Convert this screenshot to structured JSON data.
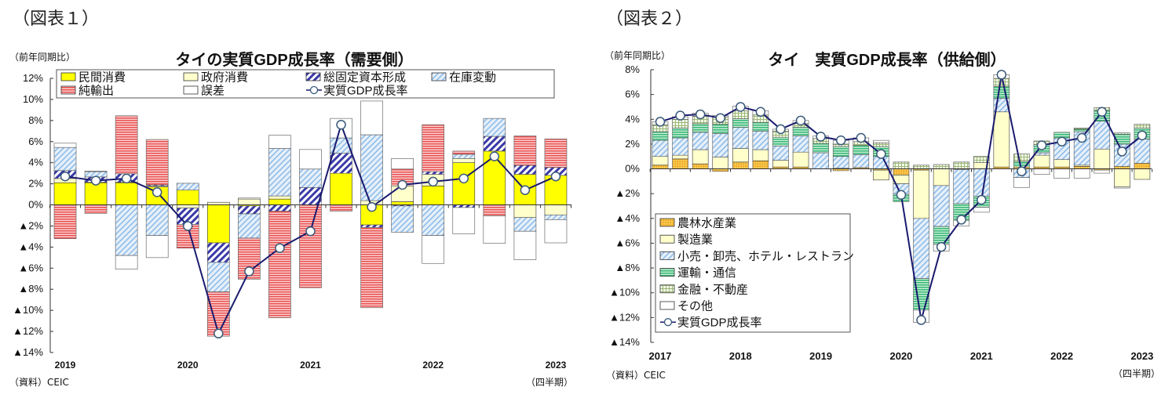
{
  "figure1": {
    "label": "（図表１）",
    "unit_note": "（前年同期比）",
    "source": "（資料）CEIC",
    "period_note": "（四半期）"
  },
  "figure2": {
    "label": "（図表２）",
    "unit_note": "（前年同期比）",
    "source": "（資料）CEIC",
    "period_note": "（四半期）"
  },
  "chart_data": [
    {
      "type": "bar",
      "stacked": true,
      "title": "タイの実質GDP成長率（需要側）",
      "ylim": [
        -14,
        12
      ],
      "ytick_labels": [
        "12%",
        "10%",
        "8%",
        "6%",
        "4%",
        "2%",
        "0%",
        "▲2%",
        "▲4%",
        "▲6%",
        "▲8%",
        "▲10%",
        "▲12%",
        "▲14%"
      ],
      "yticks": [
        12,
        10,
        8,
        6,
        4,
        2,
        0,
        -2,
        -4,
        -6,
        -8,
        -10,
        -12,
        -14
      ],
      "categories": [
        "2019Q1",
        "2019Q2",
        "2019Q3",
        "2019Q4",
        "2020Q1",
        "2020Q2",
        "2020Q3",
        "2020Q4",
        "2021Q1",
        "2021Q2",
        "2021Q3",
        "2021Q4",
        "2022Q1",
        "2022Q2",
        "2022Q3",
        "2022Q4",
        "2023Q1"
      ],
      "xtick_labels": [
        {
          "index": 0,
          "label": "2019"
        },
        {
          "index": 4,
          "label": "2020"
        },
        {
          "index": 8,
          "label": "2021"
        },
        {
          "index": 12,
          "label": "2022"
        },
        {
          "index": 16,
          "label": "2023"
        }
      ],
      "legend_position": "top",
      "series": [
        {
          "name": "民間消費",
          "color": "#ffff00",
          "pattern": "solid",
          "values": [
            2.1,
            2.1,
            2.1,
            1.7,
            1.4,
            -3.6,
            -0.1,
            0.55,
            0,
            3.0,
            -1.9,
            0.3,
            1.8,
            4.0,
            5.1,
            2.9,
            2.8
          ]
        },
        {
          "name": "政府消費",
          "color": "#ffffcc",
          "pattern": "solid",
          "values": [
            0.4,
            0.05,
            0.05,
            0.1,
            -0.3,
            0.25,
            0.55,
            0.3,
            0,
            0,
            0.4,
            1.5,
            1.1,
            0.4,
            0,
            -1.2,
            -0.95
          ]
        },
        {
          "name": "総固定資本形成",
          "color": "#3a3aa8",
          "pattern": "diag-bold",
          "values": [
            0.75,
            0.5,
            0.8,
            0.1,
            -1.55,
            -1.85,
            -0.75,
            -0.6,
            1.65,
            1.9,
            -0.25,
            -0.1,
            0.25,
            -0.25,
            1.4,
            0.85,
            0.75
          ]
        },
        {
          "name": "在庫変動",
          "color": "#8fbce8",
          "pattern": "diag-light",
          "values": [
            2.2,
            0.5,
            -4.8,
            -2.9,
            0.65,
            -2.8,
            -2.3,
            4.5,
            1.75,
            1.45,
            6.25,
            -2.5,
            -2.9,
            0.4,
            1.7,
            -1.3,
            -0.45
          ]
        },
        {
          "name": "純輸出",
          "color": "#e85050",
          "pattern": "hlines",
          "values": [
            -3.2,
            -0.8,
            5.5,
            4.3,
            -2.25,
            -4.2,
            -3.9,
            -10.1,
            -7.85,
            -0.6,
            -7.6,
            1.6,
            4.45,
            0.3,
            -1.05,
            2.8,
            2.7
          ]
        },
        {
          "name": "誤差",
          "color": "#ffffff",
          "pattern": "solid",
          "values": [
            0.4,
            0.05,
            -1.3,
            -2.1,
            0,
            0,
            0.1,
            1.25,
            1.85,
            1.85,
            3.2,
            1.0,
            -2.65,
            -2.5,
            -2.6,
            -2.7,
            -2.2
          ]
        },
        {
          "name": "実質GDP成長率",
          "type": "line",
          "color": "#1a1a6e",
          "values": [
            2.7,
            2.3,
            2.5,
            1.2,
            -2.0,
            -12.2,
            -6.3,
            -4.1,
            -2.5,
            7.6,
            -0.2,
            1.9,
            2.2,
            2.5,
            4.6,
            1.4,
            2.7
          ]
        }
      ]
    },
    {
      "type": "bar",
      "stacked": true,
      "title": "タイ　実質GDP成長率（供給側）",
      "ylim": [
        -14,
        8
      ],
      "ytick_labels": [
        "8%",
        "6%",
        "4%",
        "2%",
        "0%",
        "▲2%",
        "▲4%",
        "▲6%",
        "▲8%",
        "▲10%",
        "▲12%",
        "▲14%"
      ],
      "yticks": [
        8,
        6,
        4,
        2,
        0,
        -2,
        -4,
        -6,
        -8,
        -10,
        -12,
        -14
      ],
      "categories": [
        "2017Q1",
        "2017Q2",
        "2017Q3",
        "2017Q4",
        "2018Q1",
        "2018Q2",
        "2018Q3",
        "2018Q4",
        "2019Q1",
        "2019Q2",
        "2019Q3",
        "2019Q4",
        "2020Q1",
        "2020Q2",
        "2020Q3",
        "2020Q4",
        "2021Q1",
        "2021Q2",
        "2021Q3",
        "2021Q4",
        "2022Q1",
        "2022Q2",
        "2022Q3",
        "2022Q4",
        "2023Q1"
      ],
      "xtick_labels": [
        {
          "index": 0,
          "label": "2017"
        },
        {
          "index": 4,
          "label": "2018"
        },
        {
          "index": 8,
          "label": "2019"
        },
        {
          "index": 12,
          "label": "2020"
        },
        {
          "index": 16,
          "label": "2021"
        },
        {
          "index": 20,
          "label": "2022"
        },
        {
          "index": 24,
          "label": "2023"
        }
      ],
      "legend_position": "bottom-left",
      "series": [
        {
          "name": "農林水産業",
          "color": "#f0b030",
          "pattern": "dots",
          "values": [
            0.3,
            0.8,
            0.4,
            -0.2,
            0.55,
            0.65,
            0.15,
            0.15,
            0,
            -0.15,
            0.1,
            -0.1,
            -0.5,
            -0.1,
            0,
            -0.05,
            0,
            0.15,
            0.15,
            0.15,
            0.15,
            0.2,
            -0.1,
            0.2,
            0.45
          ]
        },
        {
          "name": "製造業",
          "color": "#ffffcc",
          "pattern": "solid",
          "values": [
            0.7,
            0.3,
            1.15,
            0.95,
            1.1,
            0.9,
            0.55,
            1.2,
            0,
            0.05,
            0,
            -0.8,
            -0.7,
            -3.9,
            -1.35,
            0,
            0.5,
            4.45,
            0,
            0.95,
            0.6,
            0.1,
            1.6,
            -1.45,
            -0.85
          ]
        },
        {
          "name": "小売・卸売、ホテル・レストラン",
          "color": "#8fbce8",
          "pattern": "diag-light",
          "values": [
            1.3,
            1.4,
            1.4,
            1.9,
            1.7,
            1.5,
            1.15,
            1.3,
            1.3,
            0.95,
            1.05,
            1.0,
            -0.85,
            -4.85,
            -3.3,
            -2.75,
            -2.2,
            1.1,
            -0.7,
            0.2,
            1.75,
            2.7,
            2.25,
            1.8,
            1.95
          ]
        },
        {
          "name": "運輸・通信",
          "color": "#3cb878",
          "pattern": "hlines-green",
          "values": [
            0.7,
            0.8,
            0.7,
            0.75,
            0.7,
            0.7,
            0.7,
            0.7,
            0.75,
            0.8,
            0.75,
            0.8,
            -0.6,
            -2.55,
            -1.45,
            -1.35,
            -0.9,
            0.95,
            0.45,
            0.65,
            0.45,
            0.2,
            0.85,
            0.8,
            0.9
          ]
        },
        {
          "name": "金融・不動産",
          "color": "#d8e8b8",
          "pattern": "grid",
          "values": [
            0.55,
            0.7,
            0.6,
            0.6,
            0.65,
            0.6,
            0.5,
            0.3,
            0.4,
            0.2,
            0.3,
            0.3,
            0.55,
            0.3,
            0.35,
            0.55,
            0.5,
            0.65,
            0.6,
            0.3,
            0,
            0.1,
            0.25,
            0.1,
            0.3
          ]
        },
        {
          "name": "その他",
          "color": "#ffffff",
          "pattern": "solid",
          "values": [
            0.25,
            0.2,
            0.25,
            0.1,
            0.35,
            0.35,
            0.15,
            0.25,
            0.2,
            0.3,
            0.3,
            0.2,
            0,
            -1.0,
            -0.55,
            -0.45,
            -0.4,
            0.3,
            -0.8,
            -0.45,
            -0.75,
            -0.75,
            -0.25,
            -0.1,
            0
          ]
        },
        {
          "name": "実質GDP成長率",
          "type": "line",
          "color": "#1a1a6e",
          "values": [
            3.8,
            4.3,
            4.4,
            4.1,
            5.0,
            4.6,
            3.2,
            3.9,
            2.6,
            2.3,
            2.5,
            1.2,
            -2.1,
            -12.2,
            -6.3,
            -4.1,
            -2.5,
            7.6,
            -0.2,
            1.9,
            2.2,
            2.5,
            4.6,
            1.4,
            2.7
          ]
        }
      ]
    }
  ]
}
